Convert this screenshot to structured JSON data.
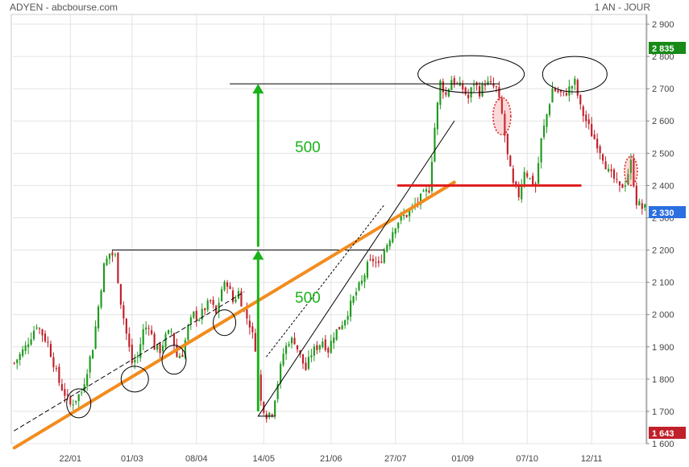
{
  "header": {
    "symbol_source": "ADYEN - abcbourse.com",
    "period": "1 AN - JOUR"
  },
  "colors": {
    "up": "#1f9a1f",
    "down": "#c0202a",
    "trend_orange": "#f28c1e",
    "support_red": "#e01c1c",
    "arrow_green": "#19b219",
    "badge_green": "#178a17",
    "badge_blue": "#2b6fe0",
    "badge_red": "#c0202a"
  },
  "chart_data": {
    "type": "candlestick",
    "x_ticks": [
      {
        "label": "22/01",
        "index": 20
      },
      {
        "label": "01/03",
        "index": 42
      },
      {
        "label": "08/04",
        "index": 65
      },
      {
        "label": "14/05",
        "index": 89
      },
      {
        "label": "21/06",
        "index": 113
      },
      {
        "label": "27/07",
        "index": 136
      },
      {
        "label": "01/09",
        "index": 160
      },
      {
        "label": "07/10",
        "index": 183
      },
      {
        "label": "12/11",
        "index": 206
      }
    ],
    "y_ticks": [
      "1 600",
      "1 700",
      "1 800",
      "1 900",
      "2 000",
      "2 100",
      "2 200",
      "2 300",
      "2 400",
      "2 500",
      "2 600",
      "2 700",
      "2 800",
      "2 900"
    ],
    "ylim": [
      1600,
      2930
    ],
    "n_sessions": 226,
    "path": [
      [
        0,
        1850
      ],
      [
        4,
        1900
      ],
      [
        8,
        1970
      ],
      [
        12,
        1910
      ],
      [
        16,
        1790
      ],
      [
        20,
        1720
      ],
      [
        24,
        1760
      ],
      [
        28,
        1900
      ],
      [
        32,
        2150
      ],
      [
        34,
        2190
      ],
      [
        36,
        2180
      ],
      [
        38,
        2040
      ],
      [
        40,
        1940
      ],
      [
        42,
        1850
      ],
      [
        44,
        1870
      ],
      [
        46,
        1950
      ],
      [
        48,
        1970
      ],
      [
        50,
        1900
      ],
      [
        52,
        1890
      ],
      [
        54,
        1930
      ],
      [
        56,
        1950
      ],
      [
        58,
        1870
      ],
      [
        60,
        1880
      ],
      [
        62,
        1960
      ],
      [
        64,
        2000
      ],
      [
        66,
        1990
      ],
      [
        68,
        2020
      ],
      [
        70,
        2040
      ],
      [
        72,
        2000
      ],
      [
        74,
        2080
      ],
      [
        76,
        2100
      ],
      [
        78,
        2040
      ],
      [
        80,
        2070
      ],
      [
        82,
        2010
      ],
      [
        84,
        1970
      ],
      [
        86,
        1900
      ],
      [
        88,
        1730
      ],
      [
        90,
        1690
      ],
      [
        92,
        1700
      ],
      [
        94,
        1790
      ],
      [
        96,
        1880
      ],
      [
        98,
        1920
      ],
      [
        100,
        1920
      ],
      [
        102,
        1870
      ],
      [
        104,
        1830
      ],
      [
        106,
        1880
      ],
      [
        108,
        1900
      ],
      [
        110,
        1920
      ],
      [
        112,
        1890
      ],
      [
        114,
        1940
      ],
      [
        116,
        1960
      ],
      [
        118,
        1990
      ],
      [
        120,
        2030
      ],
      [
        122,
        2070
      ],
      [
        124,
        2100
      ],
      [
        126,
        2150
      ],
      [
        128,
        2170
      ],
      [
        130,
        2150
      ],
      [
        132,
        2200
      ],
      [
        134,
        2240
      ],
      [
        136,
        2280
      ],
      [
        138,
        2300
      ],
      [
        140,
        2310
      ],
      [
        142,
        2330
      ],
      [
        144,
        2350
      ],
      [
        146,
        2370
      ],
      [
        148,
        2390
      ],
      [
        150,
        2580
      ],
      [
        152,
        2720
      ],
      [
        154,
        2680
      ],
      [
        156,
        2730
      ],
      [
        158,
        2710
      ],
      [
        160,
        2700
      ],
      [
        162,
        2670
      ],
      [
        164,
        2720
      ],
      [
        166,
        2690
      ],
      [
        168,
        2720
      ],
      [
        170,
        2710
      ],
      [
        172,
        2700
      ],
      [
        174,
        2620
      ],
      [
        176,
        2490
      ],
      [
        178,
        2400
      ],
      [
        180,
        2370
      ],
      [
        182,
        2450
      ],
      [
        184,
        2420
      ],
      [
        186,
        2400
      ],
      [
        188,
        2540
      ],
      [
        190,
        2620
      ],
      [
        192,
        2700
      ],
      [
        194,
        2690
      ],
      [
        196,
        2680
      ],
      [
        198,
        2700
      ],
      [
        200,
        2720
      ],
      [
        202,
        2640
      ],
      [
        204,
        2600
      ],
      [
        206,
        2560
      ],
      [
        208,
        2530
      ],
      [
        210,
        2490
      ],
      [
        212,
        2440
      ],
      [
        214,
        2420
      ],
      [
        216,
        2390
      ],
      [
        218,
        2410
      ],
      [
        220,
        2470
      ],
      [
        222,
        2350
      ],
      [
        224,
        2330
      ],
      [
        225,
        2330
      ]
    ],
    "last_price": "2 330",
    "period_high": "2 835",
    "period_low": "1 643",
    "annotations": [
      {
        "text": "500",
        "type": "label"
      },
      {
        "text": "500",
        "type": "label"
      }
    ],
    "lines": [
      {
        "name": "resistance-2200",
        "color": "black",
        "x": [
          35,
          132
        ],
        "y": [
          2200,
          2200
        ]
      },
      {
        "name": "target-2715",
        "color": "black",
        "x": [
          77,
          173
        ],
        "y": [
          2715,
          2715
        ]
      },
      {
        "name": "low-1685",
        "color": "black",
        "x": [
          87,
          93
        ],
        "y": [
          1685,
          1685
        ]
      },
      {
        "name": "orange-trendline",
        "color": "orange",
        "x": [
          0,
          157
        ],
        "y": [
          1587,
          2410
        ]
      },
      {
        "name": "dashed-channel-low",
        "color": "black-dashed",
        "x": [
          0,
          82
        ],
        "y": [
          1640,
          2070
        ]
      },
      {
        "name": "channel-lower",
        "color": "black",
        "x": [
          87,
          157
        ],
        "y": [
          1685,
          2600
        ]
      },
      {
        "name": "channel-upper-dotted",
        "color": "black-dotted",
        "x": [
          90,
          132
        ],
        "y": [
          1870,
          2340
        ]
      },
      {
        "name": "support-2400",
        "color": "red",
        "x": [
          137,
          202
        ],
        "y": [
          2400,
          2400
        ]
      }
    ],
    "arrows": [
      {
        "name": "measured-move-1",
        "x": 87,
        "y": [
          1700,
          2200
        ]
      },
      {
        "name": "measured-move-2",
        "x": 87,
        "y": [
          2210,
          2715
        ]
      }
    ]
  }
}
